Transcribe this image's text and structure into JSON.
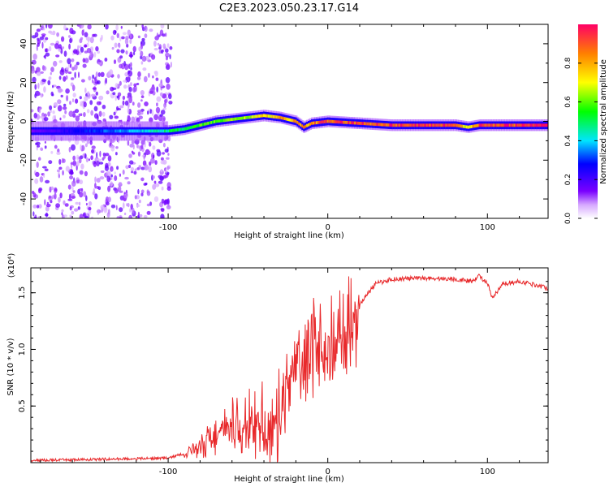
{
  "title": "C2E3.2023.050.23.17.G14",
  "colors": {
    "snr_line": "#e8292b",
    "axis": "#000000"
  },
  "chart_data": [
    {
      "type": "heatmap",
      "xlabel": "Height of straight line (km)",
      "ylabel": "Frequency (Hz)",
      "xlim": [
        -186,
        138
      ],
      "ylim": [
        -50,
        50
      ],
      "x_ticks": [
        -100,
        0,
        100
      ],
      "y_ticks": [
        -40,
        -20,
        0,
        20,
        40
      ],
      "colorbar": {
        "label": "Normalized spectral amplitude",
        "range": [
          0,
          1
        ],
        "ticks": [
          "0.0",
          "0.2",
          "0.4",
          "0.6",
          "0.8"
        ]
      },
      "ridge": {
        "description_x": [
          -186,
          -150,
          -120,
          -100,
          -90,
          -80,
          -70,
          -60,
          -50,
          -40,
          -30,
          -20,
          -15,
          -10,
          0,
          20,
          40,
          60,
          80,
          88,
          95,
          110,
          138
        ],
        "frequency_hz": [
          -5,
          -5,
          -5,
          -5,
          -4,
          -2,
          0,
          1,
          2,
          3,
          2,
          0,
          -3,
          -1,
          0,
          -1,
          -2,
          -2,
          -2,
          -3,
          -2,
          -2,
          -2
        ],
        "amplitude": [
          0.15,
          0.3,
          0.4,
          0.5,
          0.55,
          0.6,
          0.62,
          0.65,
          0.7,
          0.75,
          0.8,
          0.85,
          0.85,
          0.88,
          0.95,
          0.95,
          0.97,
          0.98,
          0.98,
          0.7,
          0.95,
          0.98,
          0.98
        ]
      },
      "noise_region_x": [
        -186,
        -100
      ]
    },
    {
      "type": "line",
      "xlabel": "Height of straight line (km)",
      "ylabel": "SNR (10 * v/v)",
      "y_multiplier": "(x10⁴)",
      "xlim": [
        -186,
        138
      ],
      "ylim": [
        0,
        1.72
      ],
      "x_ticks": [
        -100,
        0,
        100
      ],
      "y_ticks": [
        "0.5",
        "1.0",
        "1.5"
      ],
      "series": [
        {
          "x": [
            -186,
            -160,
            -140,
            -120,
            -100,
            -90,
            -80,
            -70,
            -60,
            -50,
            -40,
            -30,
            -25,
            -20,
            -10,
            0,
            10,
            20,
            30,
            40,
            60,
            80,
            90,
            95,
            100,
            103,
            110,
            120,
            130,
            138
          ],
          "y": [
            0.02,
            0.025,
            0.03,
            0.035,
            0.04,
            0.08,
            0.15,
            0.25,
            0.3,
            0.3,
            0.32,
            0.4,
            0.7,
            0.85,
            1.0,
            0.95,
            1.1,
            1.4,
            1.58,
            1.62,
            1.63,
            1.62,
            1.6,
            1.65,
            1.58,
            1.45,
            1.58,
            1.6,
            1.57,
            1.54
          ]
        }
      ]
    }
  ]
}
